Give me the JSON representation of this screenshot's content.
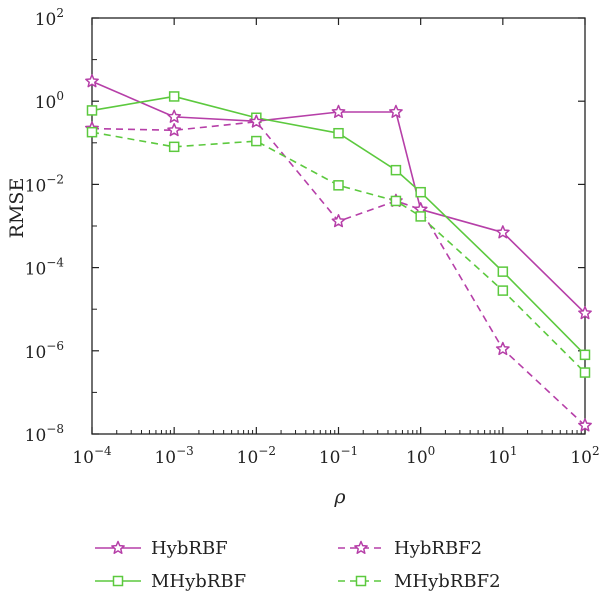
{
  "chart_data": {
    "type": "line",
    "xlabel": "ρ",
    "ylabel": "RMSE",
    "xscale": "log",
    "yscale": "log",
    "xlim": [
      0.0001,
      100
    ],
    "ylim": [
      1e-08,
      100
    ],
    "x_ticks": [
      {
        "base": "10",
        "exp": "−4",
        "value": 0.0001
      },
      {
        "base": "10",
        "exp": "−3",
        "value": 0.001
      },
      {
        "base": "10",
        "exp": "−2",
        "value": 0.01
      },
      {
        "base": "10",
        "exp": "−1",
        "value": 0.1
      },
      {
        "base": "10",
        "exp": "0",
        "value": 1
      },
      {
        "base": "10",
        "exp": "1",
        "value": 10
      },
      {
        "base": "10",
        "exp": "2",
        "value": 100
      }
    ],
    "y_ticks": [
      {
        "base": "10",
        "exp": "2",
        "value": 100
      },
      {
        "base": "10",
        "exp": "0",
        "value": 1
      },
      {
        "base": "10",
        "exp": "−2",
        "value": 0.01
      },
      {
        "base": "10",
        "exp": "−4",
        "value": 0.0001
      },
      {
        "base": "10",
        "exp": "−6",
        "value": 1e-06
      },
      {
        "base": "10",
        "exp": "−8",
        "value": 1e-08
      }
    ],
    "grid": false,
    "legend_position": "bottom",
    "series": [
      {
        "name": "HybRBF",
        "color": "#b63fa8",
        "marker": "star",
        "dash": "solid",
        "x": [
          0.0001,
          0.001,
          0.01,
          0.1,
          0.5,
          1,
          10,
          100
        ],
        "y": [
          3.0,
          0.42,
          0.33,
          0.55,
          0.55,
          0.0025,
          0.0007,
          8e-06
        ]
      },
      {
        "name": "MHybRBF",
        "color": "#5cc93e",
        "marker": "square",
        "dash": "solid",
        "x": [
          0.0001,
          0.001,
          0.01,
          0.1,
          0.5,
          1,
          10,
          100
        ],
        "y": [
          0.6,
          1.3,
          0.4,
          0.17,
          0.022,
          0.0065,
          8e-05,
          8e-07
        ]
      },
      {
        "name": "HybRBF2",
        "color": "#b63fa8",
        "marker": "star",
        "dash": "dashed",
        "x": [
          0.0001,
          0.001,
          0.01,
          0.1,
          0.5,
          1,
          10,
          100
        ],
        "y": [
          0.22,
          0.2,
          0.32,
          0.0013,
          0.004,
          0.0025,
          1.1e-06,
          1.6e-08
        ]
      },
      {
        "name": "MHybRBF2",
        "color": "#5cc93e",
        "marker": "square",
        "dash": "dashed",
        "x": [
          0.0001,
          0.001,
          0.01,
          0.1,
          0.5,
          1,
          10,
          100
        ],
        "y": [
          0.18,
          0.08,
          0.11,
          0.0095,
          0.004,
          0.0017,
          2.8e-05,
          3e-07
        ]
      }
    ]
  }
}
